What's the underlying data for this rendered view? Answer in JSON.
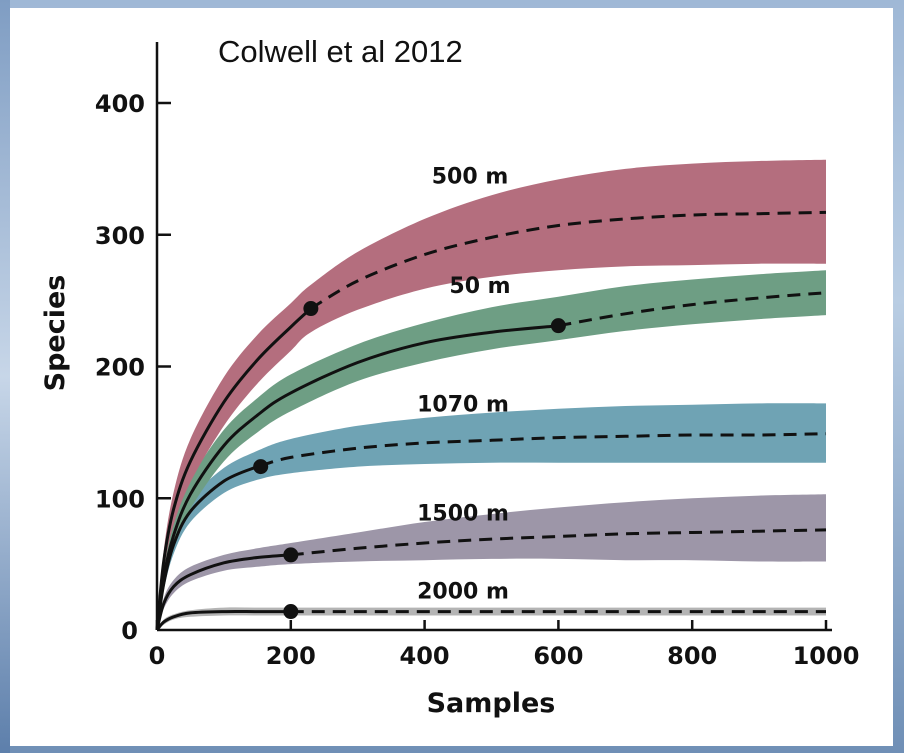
{
  "chart_data": {
    "type": "line",
    "title": "Colwell et al 2012",
    "xlabel": "Samples",
    "ylabel": "Species",
    "xlim": [
      0,
      1000
    ],
    "ylim": [
      0,
      400
    ],
    "xticks": [
      "0",
      "200",
      "400",
      "600",
      "800",
      "1000"
    ],
    "yticks": [
      "0",
      "100",
      "200",
      "300",
      "400"
    ],
    "grid": false,
    "series": [
      {
        "name": "500 m",
        "color": "#b46e7e",
        "x": [
          0,
          10,
          25,
          50,
          100,
          150,
          200,
          230,
          300,
          400,
          500,
          600,
          700,
          800,
          900,
          1000
        ],
        "y": [
          0,
          52,
          92,
          128,
          173,
          205,
          230,
          244,
          265,
          285,
          298,
          307,
          312,
          315,
          316,
          317
        ],
        "lower": [
          0,
          45,
          80,
          112,
          155,
          187,
          212,
          226,
          243,
          259,
          268,
          273,
          276,
          277,
          278,
          278
        ],
        "upper": [
          0,
          60,
          105,
          145,
          192,
          224,
          248,
          262,
          287,
          312,
          330,
          342,
          350,
          354,
          356,
          357
        ],
        "observed": [
          230,
          244
        ]
      },
      {
        "name": "50 m",
        "color": "#6e9e84",
        "x": [
          0,
          10,
          25,
          50,
          100,
          150,
          200,
          300,
          400,
          500,
          600,
          700,
          800,
          900,
          1000
        ],
        "y": [
          0,
          40,
          72,
          103,
          140,
          163,
          180,
          203,
          218,
          226,
          231,
          240,
          247,
          252,
          256
        ],
        "lower": [
          0,
          35,
          64,
          92,
          128,
          150,
          166,
          189,
          203,
          213,
          220,
          227,
          232,
          236,
          239
        ],
        "upper": [
          0,
          46,
          81,
          114,
          152,
          176,
          194,
          217,
          233,
          245,
          253,
          261,
          266,
          270,
          273
        ],
        "observed": [
          600,
          231
        ]
      },
      {
        "name": "1070 m",
        "color": "#6fa3b4",
        "x": [
          0,
          10,
          25,
          50,
          100,
          150,
          200,
          300,
          400,
          500,
          600,
          700,
          800,
          900,
          1000
        ],
        "y": [
          0,
          35,
          65,
          90,
          113,
          124,
          131,
          138,
          142,
          144,
          146,
          147,
          148,
          148,
          149
        ],
        "lower": [
          0,
          30,
          58,
          82,
          104,
          114,
          119,
          124,
          126,
          127,
          127,
          127,
          127,
          127,
          127
        ],
        "upper": [
          0,
          40,
          73,
          99,
          123,
          136,
          145,
          155,
          161,
          165,
          168,
          170,
          171,
          172,
          172
        ],
        "observed": [
          155,
          124
        ]
      },
      {
        "name": "1500 m",
        "color": "#9d96a8",
        "x": [
          0,
          10,
          25,
          50,
          100,
          150,
          200,
          300,
          400,
          500,
          600,
          700,
          800,
          900,
          1000
        ],
        "y": [
          0,
          20,
          33,
          42,
          51,
          55,
          57,
          62,
          66,
          69,
          71,
          73,
          74,
          75,
          76
        ],
        "lower": [
          0,
          16,
          28,
          37,
          45,
          48,
          50,
          52,
          53,
          54,
          54,
          53,
          53,
          52,
          52
        ],
        "upper": [
          0,
          24,
          38,
          48,
          57,
          62,
          66,
          74,
          82,
          88,
          93,
          97,
          100,
          102,
          103
        ],
        "observed": [
          200,
          57
        ]
      },
      {
        "name": "2000 m",
        "color": "#b4b4b4",
        "x": [
          0,
          10,
          25,
          50,
          100,
          150,
          200,
          300,
          400,
          500,
          600,
          700,
          800,
          900,
          1000
        ],
        "y": [
          0,
          6,
          10,
          13,
          14,
          14,
          14,
          14,
          14,
          14,
          14,
          14,
          14,
          14,
          14
        ],
        "lower": [
          0,
          4,
          8,
          10,
          11,
          11,
          11,
          11,
          11,
          11,
          11,
          11,
          11,
          11,
          11
        ],
        "upper": [
          0,
          8,
          12,
          15,
          17,
          17,
          17,
          17,
          17,
          17,
          17,
          17,
          17,
          17,
          17
        ],
        "observed": [
          200,
          14
        ]
      }
    ]
  }
}
